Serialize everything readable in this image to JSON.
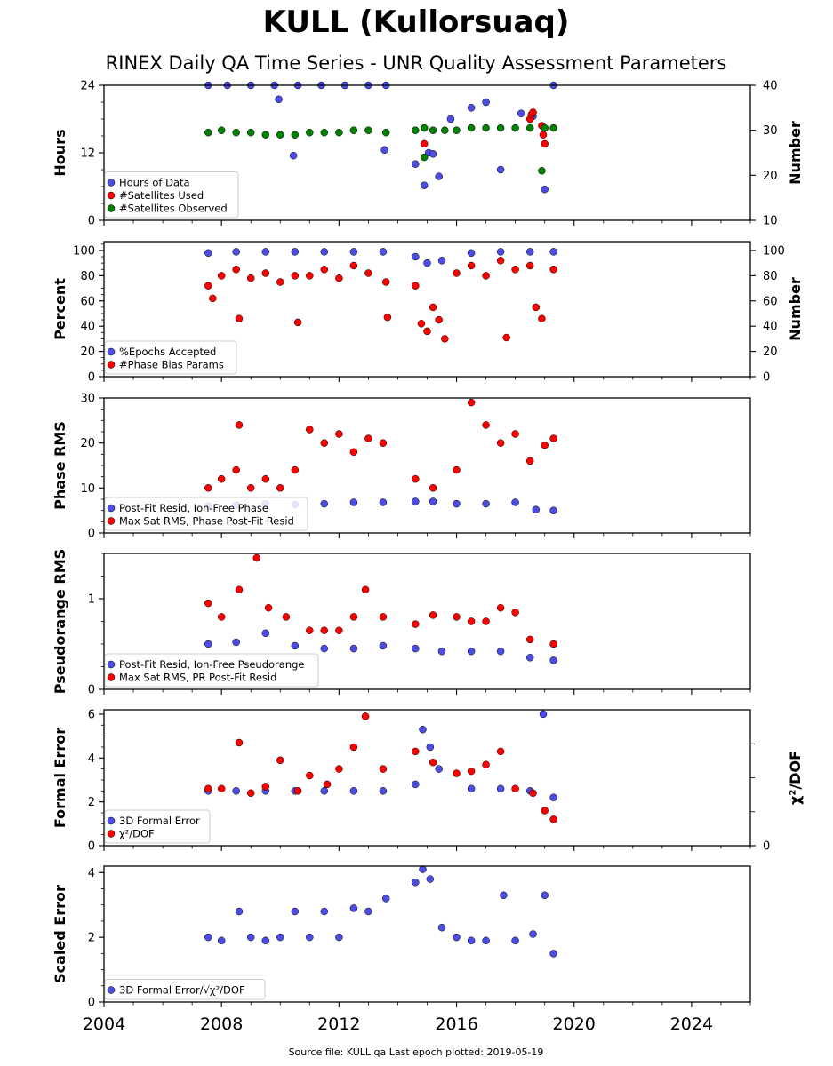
{
  "title": "KULL (Kullorsuaq)",
  "subtitle": "RINEX Daily QA Time Series - UNR Quality Assessment Parameters",
  "footer": "Source file: KULL.qa Last epoch plotted: 2019-05-19",
  "colors": {
    "blue": "#4d4de6",
    "red": "#ff0000",
    "green": "#008000"
  },
  "chart_data": [
    {
      "type": "scatter",
      "ylabel": "Hours",
      "ylim": [
        0,
        24
      ],
      "yticks": [
        0,
        12,
        24
      ],
      "right_axis": {
        "label": "Number",
        "ylim": [
          10,
          40
        ],
        "ticks": [
          10,
          20,
          30,
          40
        ]
      },
      "legend_location": "lower-left",
      "series": [
        {
          "name": "Hours of Data",
          "color": "blue",
          "axis": "left",
          "x": [
            2007.55,
            2008.2,
            2009.0,
            2009.8,
            2010.6,
            2011.4,
            2012.2,
            2013.0,
            2013.6,
            2009.95,
            2010.45,
            2013.55,
            2014.6,
            2014.9,
            2015.05,
            2015.2,
            2015.4,
            2015.8,
            2016.5,
            2017.0,
            2017.5,
            2018.2,
            2018.6,
            2019.0,
            2019.3
          ],
          "y": [
            24,
            24,
            24,
            24,
            24,
            24,
            24,
            24,
            24,
            21.5,
            11.5,
            12.5,
            10,
            6.2,
            12,
            11.8,
            7.8,
            18,
            20,
            21,
            9,
            19,
            18.5,
            5.5,
            24
          ]
        },
        {
          "name": "#Satellites Used",
          "color": "red",
          "axis": "right",
          "x": [
            2014.9,
            2018.5,
            2018.55,
            2018.6,
            2018.9,
            2018.95,
            2019.0
          ],
          "y": [
            27,
            32.5,
            33.5,
            34,
            31,
            29,
            27
          ]
        },
        {
          "name": "#Satellites Observed",
          "color": "green",
          "axis": "right",
          "x": [
            2007.55,
            2008.0,
            2008.5,
            2009.0,
            2009.5,
            2010.0,
            2010.5,
            2011.0,
            2011.5,
            2012.0,
            2012.5,
            2013.0,
            2013.6,
            2014.6,
            2014.9,
            2015.2,
            2015.6,
            2016.0,
            2016.5,
            2017.0,
            2017.5,
            2018.0,
            2018.5,
            2019.0,
            2019.3,
            2014.9,
            2018.9
          ],
          "y": [
            29.5,
            30,
            29.5,
            29.5,
            29,
            29,
            29,
            29.5,
            29.5,
            29.5,
            30,
            30,
            29.5,
            30,
            30.5,
            30,
            30,
            30,
            30.5,
            30.5,
            30.5,
            30.5,
            30.5,
            30.5,
            30.5,
            24,
            21
          ]
        }
      ]
    },
    {
      "type": "scatter",
      "ylabel": "Percent",
      "ylim": [
        0,
        107
      ],
      "yticks": [
        0,
        20,
        40,
        60,
        80,
        100
      ],
      "right_axis": {
        "label": "Number",
        "ylim": [
          0,
          107
        ],
        "ticks": [
          0,
          20,
          40,
          60,
          80,
          100
        ]
      },
      "legend_location": "lower-left",
      "series": [
        {
          "name": "%Epochs Accepted",
          "color": "blue",
          "x": [
            2007.55,
            2008.5,
            2009.5,
            2010.5,
            2011.5,
            2012.5,
            2013.5,
            2014.6,
            2015.0,
            2015.5,
            2016.5,
            2017.5,
            2018.5,
            2019.3
          ],
          "y": [
            98,
            99,
            99,
            99,
            99,
            99,
            99,
            95,
            90,
            92,
            98,
            99,
            99,
            99
          ]
        },
        {
          "name": "#Phase Bias Params",
          "color": "red",
          "x": [
            2007.55,
            2007.7,
            2008.0,
            2008.5,
            2008.6,
            2009.0,
            2009.5,
            2010.0,
            2010.5,
            2010.6,
            2011.0,
            2011.5,
            2012.0,
            2012.5,
            2013.0,
            2013.6,
            2013.65,
            2014.6,
            2014.8,
            2015.0,
            2015.2,
            2015.4,
            2015.6,
            2016.0,
            2016.5,
            2017.0,
            2017.5,
            2017.7,
            2018.0,
            2018.5,
            2018.7,
            2018.9,
            2019.3
          ],
          "y": [
            72,
            62,
            80,
            85,
            46,
            78,
            82,
            75,
            80,
            43,
            80,
            85,
            78,
            88,
            82,
            75,
            47,
            72,
            42,
            36,
            55,
            45,
            30,
            82,
            88,
            80,
            92,
            31,
            85,
            88,
            55,
            46,
            85
          ]
        }
      ]
    },
    {
      "type": "scatter",
      "ylabel": "Phase RMS",
      "ylim": [
        0,
        30
      ],
      "yticks": [
        0,
        10,
        20,
        30
      ],
      "legend_location": "lower-left",
      "series": [
        {
          "name": "Post-Fit Resid, Ion-Free Phase",
          "color": "blue",
          "x": [
            2007.55,
            2008.5,
            2009.5,
            2010.5,
            2011.5,
            2012.5,
            2013.5,
            2014.6,
            2015.2,
            2016.0,
            2017.0,
            2018.0,
            2018.7,
            2019.3
          ],
          "y": [
            6,
            6.2,
            6.5,
            6.3,
            6.5,
            6.8,
            6.8,
            7,
            7,
            6.5,
            6.5,
            6.8,
            5.2,
            5
          ]
        },
        {
          "name": "Max Sat RMS, Phase Post-Fit Resid",
          "color": "red",
          "x": [
            2007.55,
            2008.0,
            2008.5,
            2008.6,
            2009.0,
            2009.5,
            2010.0,
            2010.5,
            2011.0,
            2011.5,
            2012.0,
            2012.5,
            2013.0,
            2013.5,
            2014.6,
            2015.2,
            2016.0,
            2016.5,
            2017.0,
            2017.5,
            2018.0,
            2018.5,
            2019.0,
            2019.3
          ],
          "y": [
            10,
            12,
            14,
            24,
            10,
            12,
            10,
            14,
            23,
            20,
            22,
            18,
            21,
            20,
            12,
            10,
            14,
            29,
            24,
            20,
            22,
            16,
            19.5,
            21
          ]
        }
      ]
    },
    {
      "type": "scatter",
      "ylabel": "Pseudorange RMS",
      "ylim": [
        0,
        1.5
      ],
      "yticks": [
        0,
        1
      ],
      "legend_location": "lower-left",
      "series": [
        {
          "name": "Post-Fit Resid, Ion-Free Pseudorange",
          "color": "blue",
          "x": [
            2007.55,
            2008.5,
            2009.5,
            2010.5,
            2011.5,
            2012.5,
            2013.5,
            2014.6,
            2015.5,
            2016.5,
            2017.5,
            2018.5,
            2019.3
          ],
          "y": [
            0.5,
            0.52,
            0.62,
            0.48,
            0.45,
            0.45,
            0.48,
            0.45,
            0.42,
            0.42,
            0.42,
            0.35,
            0.32
          ]
        },
        {
          "name": "Max Sat RMS, PR Post-Fit Resid",
          "color": "red",
          "x": [
            2007.55,
            2008.0,
            2008.6,
            2009.2,
            2009.6,
            2010.2,
            2011.0,
            2011.5,
            2012.0,
            2012.5,
            2012.9,
            2013.5,
            2014.6,
            2015.2,
            2016.0,
            2016.5,
            2017.0,
            2017.5,
            2018.0,
            2018.5,
            2019.3
          ],
          "y": [
            0.95,
            0.8,
            1.1,
            1.45,
            0.9,
            0.8,
            0.65,
            0.65,
            0.65,
            0.8,
            1.1,
            0.8,
            0.72,
            0.82,
            0.8,
            0.75,
            0.75,
            0.9,
            0.85,
            0.55,
            0.5
          ]
        }
      ]
    },
    {
      "type": "scatter",
      "ylabel": "Formal Error",
      "ylim": [
        0,
        6.2
      ],
      "yticks": [
        0,
        2,
        4,
        6
      ],
      "right_axis": {
        "label": "χ²/DOF",
        "ticks": [
          0
        ]
      },
      "legend_location": "lower-left",
      "series": [
        {
          "name": "3D Formal Error",
          "color": "blue",
          "x": [
            2007.55,
            2008.5,
            2009.5,
            2010.5,
            2011.5,
            2012.5,
            2013.5,
            2014.6,
            2014.85,
            2015.1,
            2015.4,
            2016.5,
            2017.5,
            2018.5,
            2018.95,
            2019.3
          ],
          "y": [
            2.5,
            2.5,
            2.5,
            2.5,
            2.5,
            2.5,
            2.5,
            2.8,
            5.3,
            4.5,
            3.5,
            2.6,
            2.6,
            2.5,
            6,
            2.2
          ]
        },
        {
          "name": "χ²/DOF",
          "color": "red",
          "x": [
            2007.55,
            2008.0,
            2008.6,
            2009.0,
            2009.5,
            2010.0,
            2010.6,
            2011.0,
            2011.6,
            2012.0,
            2012.5,
            2012.9,
            2013.5,
            2014.6,
            2015.2,
            2016.0,
            2016.5,
            2017.0,
            2017.5,
            2018.0,
            2018.6,
            2019.0,
            2019.3
          ],
          "y": [
            2.6,
            2.6,
            4.7,
            2.4,
            2.7,
            3.9,
            2.5,
            3.2,
            2.8,
            3.5,
            4.5,
            5.9,
            3.5,
            4.3,
            3.8,
            3.3,
            3.4,
            3.7,
            4.3,
            2.6,
            2.4,
            1.6,
            1.2
          ]
        }
      ]
    },
    {
      "type": "scatter",
      "ylabel": "Scaled Error",
      "ylim": [
        0,
        4.2
      ],
      "yticks": [
        0,
        2,
        4
      ],
      "legend_location": "lower-left",
      "series": [
        {
          "name": "3D Formal Error/√χ²/DOF",
          "color": "blue",
          "x": [
            2007.55,
            2008.0,
            2008.6,
            2009.0,
            2009.5,
            2010.0,
            2010.5,
            2011.0,
            2011.5,
            2012.0,
            2012.5,
            2013.0,
            2013.6,
            2014.6,
            2014.85,
            2015.1,
            2015.5,
            2016.0,
            2016.5,
            2017.0,
            2017.6,
            2018.0,
            2018.6,
            2019.0,
            2019.3
          ],
          "y": [
            2,
            1.9,
            2.8,
            2,
            1.9,
            2,
            2.8,
            2,
            2.8,
            2,
            2.9,
            2.8,
            3.2,
            3.7,
            4.1,
            3.8,
            2.3,
            2.0,
            1.9,
            1.9,
            3.3,
            1.9,
            2.1,
            3.3,
            1.5
          ]
        }
      ]
    }
  ],
  "x_axis": {
    "xlim": [
      2004,
      2026
    ],
    "ticks": [
      2004,
      2008,
      2012,
      2016,
      2020,
      2024
    ]
  }
}
